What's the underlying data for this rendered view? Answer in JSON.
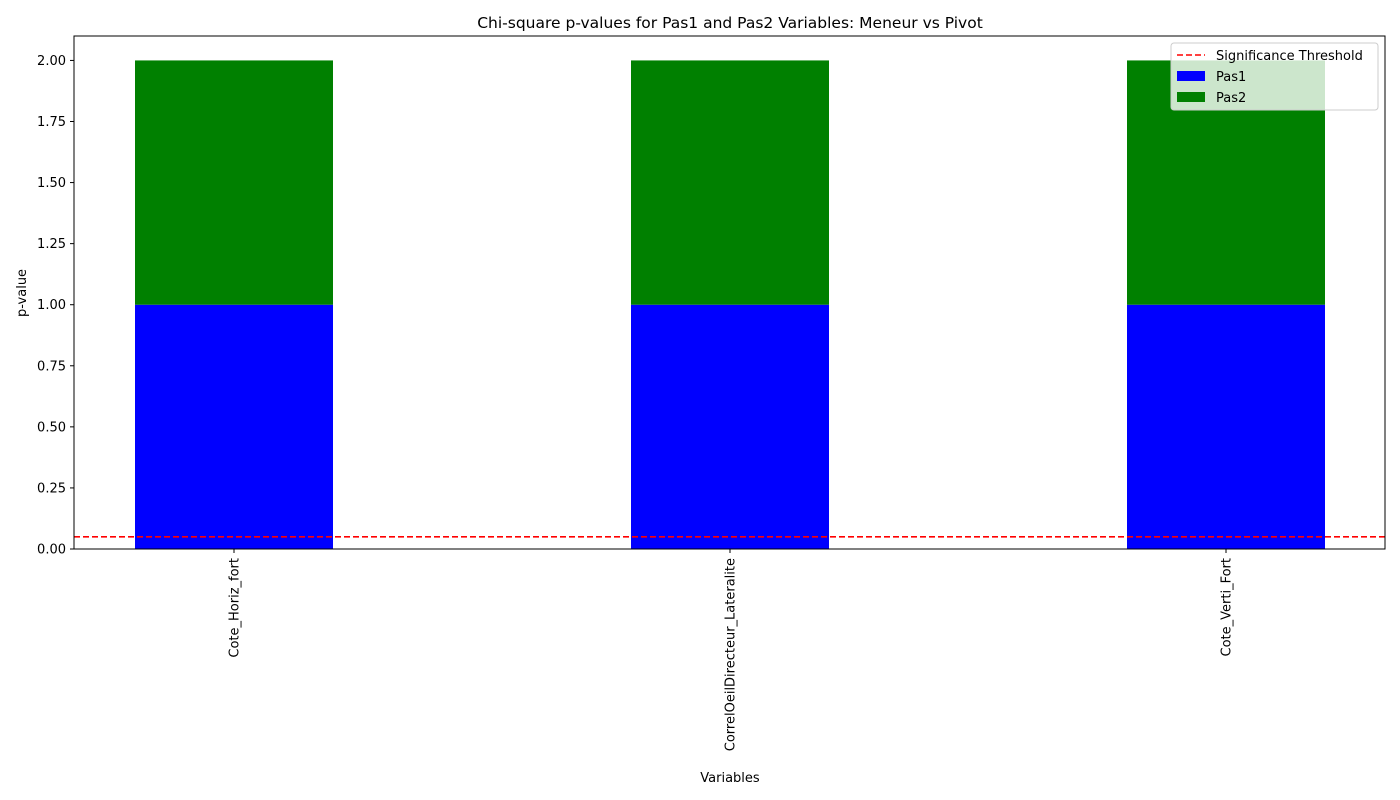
{
  "chart_data": {
    "type": "bar",
    "stacked": true,
    "title": "Chi-square p-values for Pas1 and Pas2 Variables: Meneur vs Pivot",
    "xlabel": "Variables",
    "ylabel": "p-value",
    "ylim": [
      0,
      2.1
    ],
    "yticks": [
      "0.00",
      "0.25",
      "0.50",
      "0.75",
      "1.00",
      "1.25",
      "1.50",
      "1.75",
      "2.00"
    ],
    "categories": [
      "Cote_Horiz_fort",
      "CorrelOeilDirecteur_Lateralite",
      "Cote_Verti_Fort"
    ],
    "series": [
      {
        "name": "Pas1",
        "color": "#0000ff",
        "values": [
          1.0,
          1.0,
          1.0
        ]
      },
      {
        "name": "Pas2",
        "color": "#008000",
        "values": [
          1.0,
          1.0,
          1.0
        ]
      }
    ],
    "threshold": {
      "name": "Significance Threshold",
      "value": 0.05,
      "color": "#ff0000",
      "style": "dashed"
    },
    "legend_position": "top-right",
    "grid": false
  }
}
